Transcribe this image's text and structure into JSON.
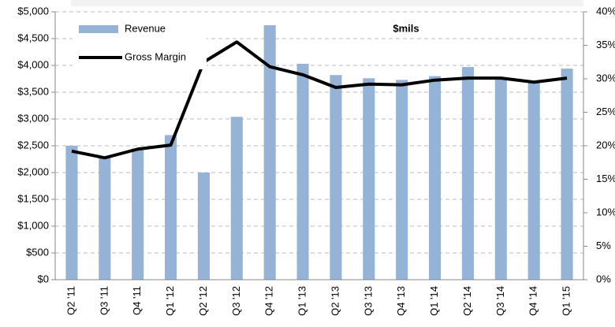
{
  "chart_data": {
    "type": "bar_line",
    "annotation": "$mils",
    "categories": [
      "Q2 '11",
      "Q3 '11",
      "Q4 '11",
      "Q1 '12",
      "Q2 '12",
      "Q3 '12",
      "Q4 '12",
      "Q1 '13",
      "Q2 '13",
      "Q3 '13",
      "Q4 '13",
      "Q1 '14",
      "Q2 '14",
      "Q3 '14",
      "Q4 '14",
      "Q1 '15"
    ],
    "series": [
      {
        "name": "Revenue",
        "type": "bar",
        "color": "#95b3d7",
        "values": [
          2500,
          2300,
          2450,
          2700,
          2000,
          3040,
          4750,
          4030,
          3820,
          3760,
          3730,
          3800,
          3970,
          3750,
          3680,
          3940
        ]
      },
      {
        "name": "Gross Margin",
        "type": "line",
        "axis": "y2",
        "color": "#000000",
        "values": [
          19.2,
          18.2,
          19.5,
          20.1,
          32.5,
          35.5,
          31.8,
          30.6,
          28.7,
          29.2,
          29.1,
          29.8,
          30.1,
          30.1,
          29.5,
          30.1
        ]
      }
    ],
    "ylim": [
      0,
      5000
    ],
    "yticks": [
      {
        "value": 0,
        "label": "$0"
      },
      {
        "value": 500,
        "label": "$500"
      },
      {
        "value": 1000,
        "label": "$1,000"
      },
      {
        "value": 1500,
        "label": "$1,500"
      },
      {
        "value": 2000,
        "label": "$2,000"
      },
      {
        "value": 2500,
        "label": "$2,500"
      },
      {
        "value": 3000,
        "label": "$3,000"
      },
      {
        "value": 3500,
        "label": "$3,500"
      },
      {
        "value": 4000,
        "label": "$4,000"
      },
      {
        "value": 4500,
        "label": "$4,500"
      },
      {
        "value": 5000,
        "label": "$5,000"
      }
    ],
    "y2lim": [
      0,
      40
    ],
    "y2ticks": [
      {
        "value": 0,
        "label": "0%"
      },
      {
        "value": 5,
        "label": "5%"
      },
      {
        "value": 10,
        "label": "10%"
      },
      {
        "value": 15,
        "label": "15%"
      },
      {
        "value": 20,
        "label": "20%"
      },
      {
        "value": 25,
        "label": "25%"
      },
      {
        "value": 30,
        "label": "30%"
      },
      {
        "value": 35,
        "label": "35%"
      },
      {
        "value": 40,
        "label": "40%"
      }
    ],
    "grid": true,
    "legend": "upper left"
  }
}
